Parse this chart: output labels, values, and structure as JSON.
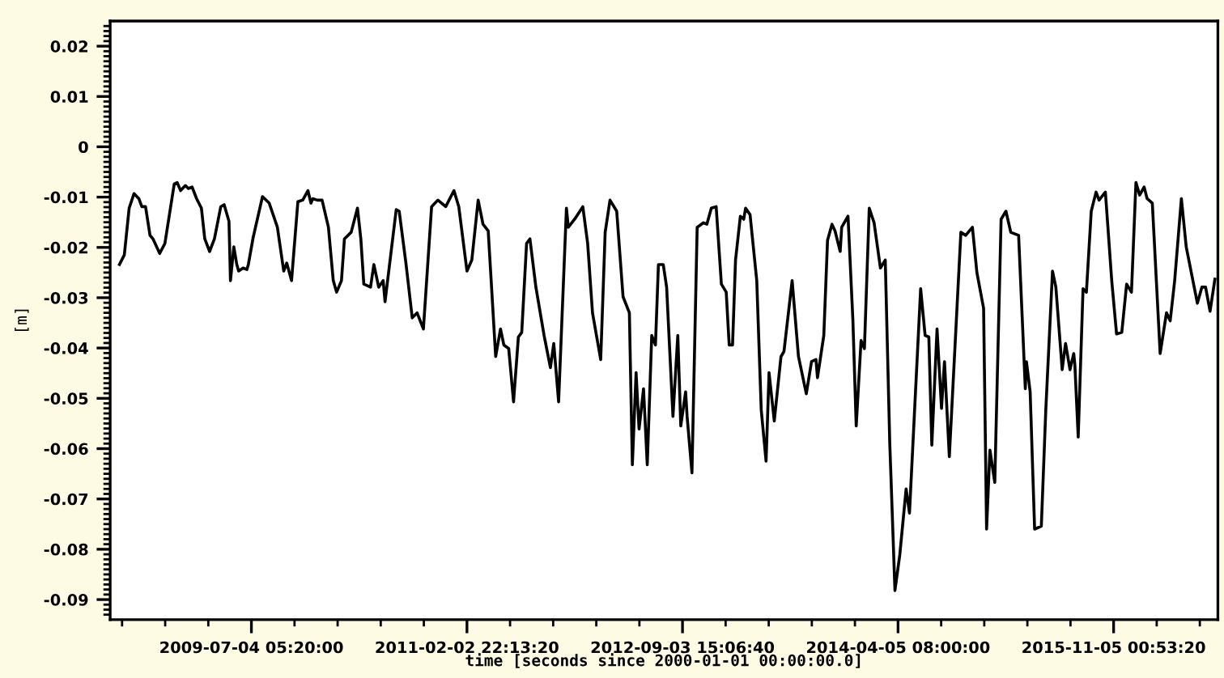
{
  "chart_data": {
    "type": "line",
    "xlabel": "time [seconds since 2000-01-01 00:00:00.0]",
    "ylabel": "[m]",
    "xlim": [
      "2008-06-20",
      "2016-08-11"
    ],
    "ylim": [
      -0.094,
      0.025
    ],
    "xticks": [
      {
        "value": "2008-07-22T00:00",
        "label": null
      },
      {
        "value": "2008-11-14T17:46",
        "label": null
      },
      {
        "value": "2009-03-10T11:33",
        "label": null
      },
      {
        "value": "2009-07-04T05:20",
        "label": "2009-07-04 05:20:00"
      },
      {
        "value": "2009-10-27T23:06",
        "label": null
      },
      {
        "value": "2010-02-20T16:53",
        "label": null
      },
      {
        "value": "2010-06-16T10:40",
        "label": null
      },
      {
        "value": "2010-10-10T04:26",
        "label": null
      },
      {
        "value": "2011-02-02T22:13",
        "label": "2011-02-02 22:13:20"
      },
      {
        "value": "2011-05-29T16:00",
        "label": null
      },
      {
        "value": "2011-09-22T09:46",
        "label": null
      },
      {
        "value": "2012-01-16T03:33",
        "label": null
      },
      {
        "value": "2012-05-10T21:20",
        "label": null
      },
      {
        "value": "2012-09-03T15:06",
        "label": "2012-09-03 15:06:40"
      },
      {
        "value": "2012-12-28T08:53",
        "label": null
      },
      {
        "value": "2013-04-23T02:40",
        "label": null
      },
      {
        "value": "2013-08-16T20:26",
        "label": null
      },
      {
        "value": "2013-12-10T14:13",
        "label": null
      },
      {
        "value": "2014-04-05T08:00",
        "label": "2014-04-05 08:00:00"
      },
      {
        "value": "2014-07-30T01:46",
        "label": null
      },
      {
        "value": "2014-11-22T19:33",
        "label": null
      },
      {
        "value": "2015-03-18T13:20",
        "label": null
      },
      {
        "value": "2015-07-12T07:06",
        "label": null
      },
      {
        "value": "2015-11-05T00:53",
        "label": "2015-11-05 00:53:20"
      },
      {
        "value": "2016-02-28T18:40",
        "label": null
      },
      {
        "value": "2016-06-23T12:26",
        "label": null
      }
    ],
    "yticks": [
      0.02,
      0.01,
      0,
      -0.01,
      -0.02,
      -0.03,
      -0.04,
      -0.05,
      -0.06,
      -0.07,
      -0.08,
      -0.09,
      {
        "value": 0.024,
        "label": null
      },
      {
        "value": 0.023,
        "label": null
      },
      {
        "value": 0.022,
        "label": null
      },
      {
        "value": 0.021,
        "label": null
      },
      {
        "value": 0.019,
        "label": null
      },
      {
        "value": 0.018,
        "label": null
      },
      {
        "value": 0.017,
        "label": null
      },
      {
        "value": 0.016,
        "label": null
      },
      {
        "value": 0.015,
        "label": null
      },
      {
        "value": 0.014,
        "label": null
      },
      {
        "value": 0.013,
        "label": null
      },
      {
        "value": 0.012,
        "label": null
      },
      {
        "value": 0.011,
        "label": null
      },
      {
        "value": 0.009,
        "label": null
      },
      {
        "value": 0.008,
        "label": null
      },
      {
        "value": 0.007,
        "label": null
      },
      {
        "value": 0.006,
        "label": null
      },
      {
        "value": 0.005,
        "label": null
      },
      {
        "value": 0.004,
        "label": null
      },
      {
        "value": 0.003,
        "label": null
      },
      {
        "value": 0.002,
        "label": null
      },
      {
        "value": 0.001,
        "label": null
      },
      {
        "value": -0.001,
        "label": null
      },
      {
        "value": -0.002,
        "label": null
      },
      {
        "value": -0.003,
        "label": null
      },
      {
        "value": -0.004,
        "label": null
      },
      {
        "value": -0.005,
        "label": null
      },
      {
        "value": -0.006,
        "label": null
      },
      {
        "value": -0.007,
        "label": null
      },
      {
        "value": -0.008,
        "label": null
      },
      {
        "value": -0.009,
        "label": null
      },
      {
        "value": -0.011,
        "label": null
      },
      {
        "value": -0.012,
        "label": null
      },
      {
        "value": -0.013,
        "label": null
      },
      {
        "value": -0.014,
        "label": null
      },
      {
        "value": -0.015,
        "label": null
      },
      {
        "value": -0.016,
        "label": null
      },
      {
        "value": -0.017,
        "label": null
      },
      {
        "value": -0.018,
        "label": null
      },
      {
        "value": -0.019,
        "label": null
      },
      {
        "value": -0.021,
        "label": null
      },
      {
        "value": -0.022,
        "label": null
      },
      {
        "value": -0.023,
        "label": null
      },
      {
        "value": -0.024,
        "label": null
      },
      {
        "value": -0.025,
        "label": null
      },
      {
        "value": -0.026,
        "label": null
      },
      {
        "value": -0.027,
        "label": null
      },
      {
        "value": -0.028,
        "label": null
      },
      {
        "value": -0.029,
        "label": null
      },
      {
        "value": -0.031,
        "label": null
      },
      {
        "value": -0.032,
        "label": null
      },
      {
        "value": -0.033,
        "label": null
      },
      {
        "value": -0.034,
        "label": null
      },
      {
        "value": -0.035,
        "label": null
      },
      {
        "value": -0.036,
        "label": null
      },
      {
        "value": -0.037,
        "label": null
      },
      {
        "value": -0.038,
        "label": null
      },
      {
        "value": -0.039,
        "label": null
      },
      {
        "value": -0.041,
        "label": null
      },
      {
        "value": -0.042,
        "label": null
      },
      {
        "value": -0.043,
        "label": null
      },
      {
        "value": -0.044,
        "label": null
      },
      {
        "value": -0.045,
        "label": null
      },
      {
        "value": -0.046,
        "label": null
      },
      {
        "value": -0.047,
        "label": null
      },
      {
        "value": -0.048,
        "label": null
      },
      {
        "value": -0.049,
        "label": null
      },
      {
        "value": -0.051,
        "label": null
      },
      {
        "value": -0.052,
        "label": null
      },
      {
        "value": -0.053,
        "label": null
      },
      {
        "value": -0.054,
        "label": null
      },
      {
        "value": -0.055,
        "label": null
      },
      {
        "value": -0.056,
        "label": null
      },
      {
        "value": -0.057,
        "label": null
      },
      {
        "value": -0.058,
        "label": null
      },
      {
        "value": -0.059,
        "label": null
      },
      {
        "value": -0.061,
        "label": null
      },
      {
        "value": -0.062,
        "label": null
      },
      {
        "value": -0.063,
        "label": null
      },
      {
        "value": -0.064,
        "label": null
      },
      {
        "value": -0.065,
        "label": null
      },
      {
        "value": -0.066,
        "label": null
      },
      {
        "value": -0.067,
        "label": null
      },
      {
        "value": -0.068,
        "label": null
      },
      {
        "value": -0.069,
        "label": null
      },
      {
        "value": -0.071,
        "label": null
      },
      {
        "value": -0.072,
        "label": null
      },
      {
        "value": -0.073,
        "label": null
      },
      {
        "value": -0.074,
        "label": null
      },
      {
        "value": -0.075,
        "label": null
      },
      {
        "value": -0.076,
        "label": null
      },
      {
        "value": -0.077,
        "label": null
      },
      {
        "value": -0.078,
        "label": null
      },
      {
        "value": -0.079,
        "label": null
      },
      {
        "value": -0.081,
        "label": null
      },
      {
        "value": -0.082,
        "label": null
      },
      {
        "value": -0.083,
        "label": null
      },
      {
        "value": -0.084,
        "label": null
      },
      {
        "value": -0.085,
        "label": null
      },
      {
        "value": -0.086,
        "label": null
      },
      {
        "value": -0.087,
        "label": null
      },
      {
        "value": -0.088,
        "label": null
      },
      {
        "value": -0.089,
        "label": null
      },
      {
        "value": -0.091,
        "label": null
      },
      {
        "value": -0.092,
        "label": null
      },
      {
        "value": -0.093,
        "label": null
      }
    ],
    "marker": "none",
    "line_style": "solid",
    "series": [
      {
        "color": "#000000",
        "x": [
          "2008-07-15",
          "2008-07-28",
          "2008-08-10",
          "2008-08-23",
          "2008-09-05",
          "2008-09-13",
          "2008-09-23",
          "2008-10-05",
          "2008-10-13",
          "2008-10-31",
          "2008-11-14",
          "2008-12-09",
          "2008-12-17",
          "2008-12-26",
          "2009-01-08",
          "2009-01-16",
          "2009-01-26",
          "2009-02-07",
          "2009-02-20",
          "2009-03-01",
          "2009-03-14",
          "2009-03-27",
          "2009-04-13",
          "2009-04-22",
          "2009-05-05",
          "2009-05-09",
          "2009-05-18",
          "2009-05-26",
          "2009-05-31",
          "2009-06-12",
          "2009-06-22",
          "2009-06-26",
          "2009-07-09",
          "2009-08-03",
          "2009-08-21",
          "2009-09-12",
          "2009-09-29",
          "2009-10-07",
          "2009-10-20",
          "2009-11-06",
          "2009-11-19",
          "2009-12-03",
          "2009-12-11",
          "2009-12-16",
          "2009-12-28",
          "2010-01-10",
          "2010-01-27",
          "2010-02-09",
          "2010-02-18",
          "2010-03-03",
          "2010-03-11",
          "2010-03-29",
          "2010-04-15",
          "2010-04-24",
          "2010-05-02",
          "2010-05-20",
          "2010-05-29",
          "2010-06-11",
          "2010-06-23",
          "2010-06-28",
          "2010-07-28",
          "2010-08-05",
          "2010-08-23",
          "2010-09-09",
          "2010-09-22",
          "2010-10-09",
          "2010-10-31",
          "2010-11-17",
          "2010-12-08",
          "2010-12-30",
          "2011-01-12",
          "2011-02-03",
          "2011-02-16",
          "2011-03-05",
          "2011-03-18",
          "2011-04-01",
          "2011-04-21",
          "2011-05-04",
          "2011-05-13",
          "2011-05-26",
          "2011-06-08",
          "2011-06-21",
          "2011-06-30",
          "2011-07-13",
          "2011-07-22",
          "2011-08-07",
          "2011-08-29",
          "2011-09-15",
          "2011-09-24",
          "2011-10-07",
          "2011-10-28",
          "2011-11-02",
          "2011-11-19",
          "2011-12-11",
          "2011-12-24",
          "2012-01-06",
          "2012-01-28",
          "2012-02-09",
          "2012-02-22",
          "2012-03-11",
          "2012-03-28",
          "2012-04-14",
          "2012-04-22",
          "2012-05-02",
          "2012-05-10",
          "2012-05-22",
          "2012-06-01",
          "2012-06-13",
          "2012-06-23",
          "2012-07-01",
          "2012-07-14",
          "2012-07-23",
          "2012-08-09",
          "2012-08-22",
          "2012-08-30",
          "2012-09-12",
          "2012-09-16",
          "2012-09-29",
          "2012-10-13",
          "2012-10-30",
          "2012-11-08",
          "2012-11-20",
          "2012-12-03",
          "2012-12-17",
          "2012-12-30",
          "2013-01-07",
          "2013-01-16",
          "2013-01-24",
          "2013-02-06",
          "2013-02-15",
          "2013-02-20",
          "2013-03-04",
          "2013-03-22",
          "2013-04-03",
          "2013-04-16",
          "2013-04-24",
          "2013-05-08",
          "2013-05-26",
          "2013-06-03",
          "2013-06-25",
          "2013-07-12",
          "2013-08-02",
          "2013-08-16",
          "2013-08-28",
          "2013-09-01",
          "2013-09-18",
          "2013-09-28",
          "2013-10-10",
          "2013-10-18",
          "2013-11-01",
          "2013-11-05",
          "2013-11-22",
          "2013-12-05",
          "2013-12-14",
          "2013-12-27",
          "2014-01-05",
          "2014-01-18",
          "2014-01-31",
          "2014-02-17",
          "2014-03-02",
          "2014-03-14",
          "2014-03-28",
          "2014-04-10",
          "2014-04-27",
          "2014-05-06",
          "2014-06-05",
          "2014-06-17",
          "2014-06-27",
          "2014-07-05",
          "2014-07-19",
          "2014-07-31",
          "2014-08-08",
          "2014-08-21",
          "2014-09-21",
          "2014-10-04",
          "2014-10-22",
          "2014-11-03",
          "2014-11-21",
          "2014-11-29",
          "2014-12-08",
          "2014-12-21",
          "2015-01-07",
          "2015-01-20",
          "2015-02-02",
          "2015-02-23",
          "2015-03-13",
          "2015-03-16",
          "2015-03-26",
          "2015-04-07",
          "2015-04-25",
          "2015-05-07",
          "2015-05-25",
          "2015-06-03",
          "2015-06-20",
          "2015-06-29",
          "2015-07-11",
          "2015-07-21",
          "2015-07-24",
          "2015-08-02",
          "2015-08-15",
          "2015-08-24",
          "2015-09-06",
          "2015-09-19",
          "2015-09-27",
          "2015-10-14",
          "2015-10-31",
          "2015-11-13",
          "2015-11-27",
          "2015-12-10",
          "2015-12-23",
          "2016-01-04",
          "2016-01-14",
          "2016-01-26",
          "2016-02-03",
          "2016-02-17",
          "2016-03-09",
          "2016-03-26",
          "2016-04-05",
          "2016-04-17",
          "2016-05-05",
          "2016-05-18",
          "2016-06-17",
          "2016-06-29",
          "2016-07-09",
          "2016-07-21",
          "2016-08-03"
        ],
        "values": [
          -0.0234,
          -0.0215,
          -0.0122,
          -0.0093,
          -0.0103,
          -0.0119,
          -0.0119,
          -0.0176,
          -0.0183,
          -0.0212,
          -0.0192,
          -0.0074,
          -0.0071,
          -0.0087,
          -0.0077,
          -0.0083,
          -0.008,
          -0.0103,
          -0.0122,
          -0.0183,
          -0.0208,
          -0.0183,
          -0.0119,
          -0.0115,
          -0.0148,
          -0.0266,
          -0.0199,
          -0.0234,
          -0.0247,
          -0.0241,
          -0.0244,
          -0.0234,
          -0.018,
          -0.0099,
          -0.0112,
          -0.016,
          -0.0247,
          -0.0231,
          -0.0266,
          -0.0109,
          -0.0106,
          -0.0087,
          -0.0112,
          -0.0103,
          -0.0106,
          -0.0106,
          -0.016,
          -0.0266,
          -0.0289,
          -0.0266,
          -0.0183,
          -0.017,
          -0.0122,
          -0.0183,
          -0.0273,
          -0.0279,
          -0.0234,
          -0.0279,
          -0.0266,
          -0.0308,
          -0.0125,
          -0.0128,
          -0.0231,
          -0.034,
          -0.033,
          -0.0362,
          -0.0119,
          -0.0106,
          -0.0119,
          -0.0087,
          -0.0119,
          -0.0247,
          -0.0225,
          -0.0106,
          -0.0154,
          -0.0167,
          -0.0417,
          -0.0362,
          -0.0394,
          -0.0401,
          -0.0507,
          -0.0378,
          -0.0369,
          -0.0192,
          -0.0183,
          -0.0279,
          -0.0375,
          -0.0439,
          -0.0391,
          -0.0507,
          -0.0122,
          -0.016,
          -0.0144,
          -0.0119,
          -0.0192,
          -0.033,
          -0.0423,
          -0.017,
          -0.0106,
          -0.0128,
          -0.0298,
          -0.033,
          -0.0632,
          -0.0449,
          -0.0561,
          -0.0481,
          -0.0632,
          -0.0375,
          -0.0394,
          -0.0234,
          -0.0234,
          -0.0279,
          -0.0536,
          -0.0375,
          -0.0555,
          -0.0487,
          -0.0536,
          -0.0648,
          -0.016,
          -0.0151,
          -0.0154,
          -0.0122,
          -0.0119,
          -0.0273,
          -0.0289,
          -0.0394,
          -0.0394,
          -0.0225,
          -0.0138,
          -0.0144,
          -0.0122,
          -0.0135,
          -0.0266,
          -0.0523,
          -0.0625,
          -0.0449,
          -0.0545,
          -0.0417,
          -0.0407,
          -0.0266,
          -0.0417,
          -0.0491,
          -0.0427,
          -0.0423,
          -0.0459,
          -0.0375,
          -0.0186,
          -0.0154,
          -0.0167,
          -0.0208,
          -0.016,
          -0.0138,
          -0.0343,
          -0.0555,
          -0.0385,
          -0.0401,
          -0.0122,
          -0.0151,
          -0.0241,
          -0.0225,
          -0.0587,
          -0.0882,
          -0.0811,
          -0.068,
          -0.0728,
          -0.0282,
          -0.0375,
          -0.0378,
          -0.0593,
          -0.0362,
          -0.052,
          -0.0427,
          -0.0616,
          -0.017,
          -0.0176,
          -0.016,
          -0.025,
          -0.0321,
          -0.076,
          -0.0603,
          -0.0667,
          -0.0144,
          -0.0128,
          -0.017,
          -0.0176,
          -0.0481,
          -0.0427,
          -0.0487,
          -0.076,
          -0.0754,
          -0.0523,
          -0.0247,
          -0.0279,
          -0.0443,
          -0.0391,
          -0.0443,
          -0.0411,
          -0.0433,
          -0.0577,
          -0.0282,
          -0.0289,
          -0.0128,
          -0.009,
          -0.0106,
          -0.009,
          -0.0266,
          -0.0372,
          -0.0369,
          -0.0273,
          -0.0289,
          -0.0071,
          -0.0096,
          -0.008,
          -0.0103,
          -0.0112,
          -0.0411,
          -0.033,
          -0.0346,
          -0.0266,
          -0.0103,
          -0.0199,
          -0.0311,
          -0.0279,
          -0.0279,
          -0.0327,
          -0.0263
        ]
      }
    ]
  }
}
